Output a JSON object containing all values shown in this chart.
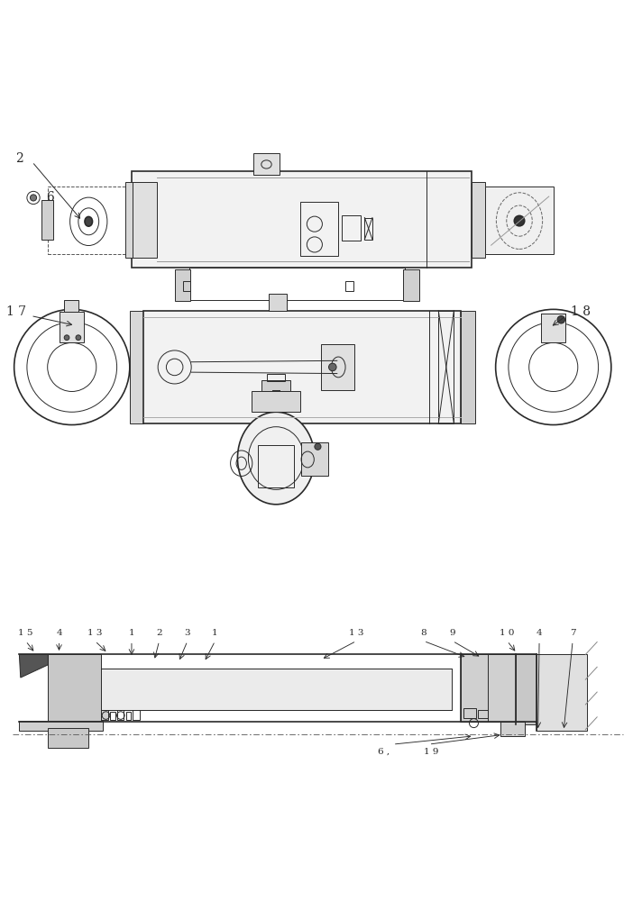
{
  "bg_color": "#ffffff",
  "line_color": "#2a2a2a",
  "light_gray": "#c8c8c8",
  "medium_gray": "#888888",
  "dark_color": "#1a1a1a"
}
